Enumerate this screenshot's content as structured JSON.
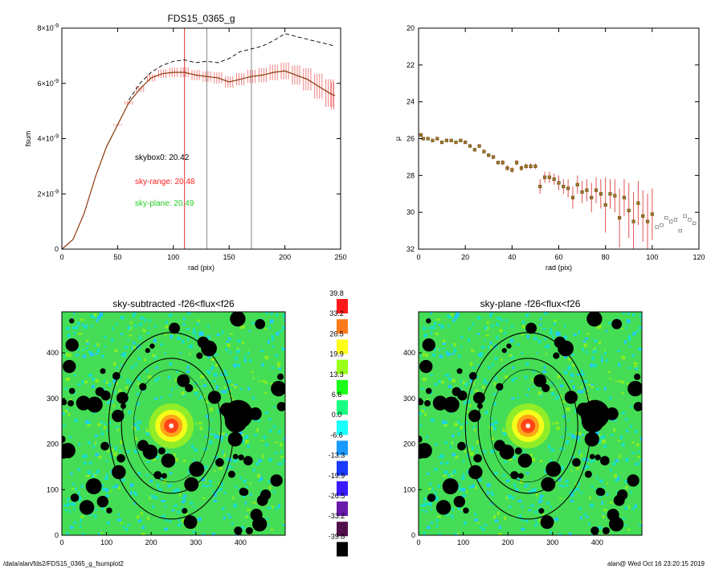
{
  "footer": {
    "left": "/data/alan/fds2/FDS15_0365_g_fsumplot2",
    "right": "alan@  Wed Oct 16 23:20:15 2019"
  },
  "chart_data": [
    {
      "type": "line",
      "title": "FDS15_0365_g",
      "xlabel": "rad (pix)",
      "ylabel": "fsum",
      "xlim": [
        0,
        250
      ],
      "ylim": [
        0,
        8e-09
      ],
      "xticks": [
        "0",
        "50",
        "100",
        "150",
        "200",
        "250"
      ],
      "yticks": [
        "0",
        "2×10⁻⁹",
        "4×10⁻⁹",
        "6×10⁻⁹",
        "8×10⁻⁹"
      ],
      "annotations": [
        {
          "text": "skybox0: 20.42",
          "color": "#000000"
        },
        {
          "text": "sky-range: 20.48",
          "color": "#ff2020"
        },
        {
          "text": "sky-plane: 20.49",
          "color": "#22cc22"
        }
      ],
      "vlines": [
        {
          "x": 110,
          "color": "#e03030"
        },
        {
          "x": 130,
          "color": "#888888"
        },
        {
          "x": 170,
          "color": "#888888"
        }
      ],
      "series": [
        {
          "style": "red-with-errorbars",
          "x": [
            0,
            10,
            20,
            30,
            40,
            50,
            60,
            70,
            80,
            90,
            100,
            110,
            120,
            130,
            140,
            150,
            160,
            170,
            180,
            190,
            200,
            210,
            220,
            230,
            240,
            245
          ],
          "y": [
            0,
            3.5e-10,
            1.3e-09,
            2.6e-09,
            3.7e-09,
            4.5e-09,
            5.3e-09,
            5.8e-09,
            6.2e-09,
            6.35e-09,
            6.4e-09,
            6.4e-09,
            6.3e-09,
            6.25e-09,
            6.2e-09,
            6.05e-09,
            6.15e-09,
            6.25e-09,
            6.3e-09,
            6.4e-09,
            6.45e-09,
            6.3e-09,
            6.15e-09,
            5.9e-09,
            5.65e-09,
            5.55e-09
          ],
          "err": [
            0,
            0,
            0,
            0,
            0,
            3e-11,
            6e-11,
            1e-10,
            1.3e-10,
            1.5e-10,
            1.7e-10,
            1.8e-10,
            1.8e-10,
            1.9e-10,
            2e-10,
            2e-10,
            2.2e-10,
            2.4e-10,
            2.6e-10,
            2.8e-10,
            3e-10,
            3.5e-10,
            4e-10,
            4.5e-10,
            5e-10,
            5e-10
          ]
        },
        {
          "style": "black-dashed",
          "x": [
            60,
            70,
            80,
            90,
            100,
            110,
            120,
            130,
            140,
            150,
            160,
            170,
            180,
            190,
            200,
            210,
            220,
            230,
            240,
            245
          ],
          "y": [
            5.4e-09,
            6e-09,
            6.4e-09,
            6.65e-09,
            6.8e-09,
            6.85e-09,
            6.75e-09,
            6.8e-09,
            6.75e-09,
            6.9e-09,
            7.15e-09,
            7.25e-09,
            7.35e-09,
            7.55e-09,
            7.8e-09,
            7.7e-09,
            7.6e-09,
            7.5e-09,
            7.4e-09,
            7.35e-09
          ]
        }
      ]
    },
    {
      "type": "scatter",
      "title": "",
      "xlabel": "rad (pix)",
      "ylabel": "μ",
      "xlim": [
        0,
        120
      ],
      "ylim": [
        32,
        20
      ],
      "xticks": [
        "0",
        "20",
        "40",
        "60",
        "80",
        "100",
        "120"
      ],
      "yticks": [
        "20",
        "22",
        "24",
        "26",
        "28",
        "30",
        "32"
      ],
      "points": {
        "x": [
          1,
          2,
          4,
          6,
          8,
          10,
          12,
          14,
          16,
          18,
          20,
          22,
          24,
          26,
          28,
          30,
          32,
          34,
          36,
          38,
          40,
          42,
          44,
          46,
          48,
          50,
          52,
          54,
          56,
          58,
          60,
          62,
          64,
          66,
          68,
          70,
          72,
          74,
          76,
          78,
          80,
          82,
          84,
          86,
          88,
          90,
          92,
          94,
          96,
          98,
          100,
          102,
          104,
          106,
          108,
          110,
          112,
          114,
          116,
          118
        ],
        "y": [
          25.8,
          26.0,
          26.0,
          26.1,
          26.0,
          26.2,
          26.1,
          26.1,
          26.2,
          26.1,
          26.2,
          26.4,
          26.6,
          26.4,
          26.7,
          26.9,
          27.0,
          27.3,
          27.3,
          27.6,
          27.7,
          27.3,
          27.6,
          27.5,
          27.5,
          27.5,
          28.6,
          28.1,
          28.1,
          28.2,
          28.4,
          28.6,
          28.7,
          29.2,
          28.5,
          28.9,
          28.8,
          29.2,
          28.8,
          29.0,
          29.6,
          29.0,
          29.1,
          30.3,
          29.2,
          29.9,
          30.5,
          29.5,
          30.2,
          30.5,
          30.1,
          30.8,
          30.7,
          30.3,
          30.5,
          30.4,
          31.0,
          30.2,
          30.4,
          30.6
        ],
        "err": [
          0.1,
          0.05,
          0.05,
          0.05,
          0.05,
          0.05,
          0.05,
          0.05,
          0.05,
          0.05,
          0.05,
          0.05,
          0.1,
          0.1,
          0.1,
          0.1,
          0.1,
          0.1,
          0.15,
          0.15,
          0.15,
          0.15,
          0.15,
          0.15,
          0.15,
          0.15,
          0.4,
          0.3,
          0.3,
          0.3,
          0.4,
          0.4,
          0.5,
          0.6,
          0.5,
          0.6,
          0.6,
          0.8,
          0.7,
          0.8,
          1.5,
          0.8,
          0.9,
          1.6,
          1.0,
          1.5,
          1.6,
          1.2,
          1.4,
          1.5,
          1.4,
          0,
          0,
          0,
          0,
          0,
          0,
          0,
          0,
          0
        ]
      }
    },
    {
      "type": "heatmap",
      "title": "sky-subtracted -f26<flux<f26",
      "xlim": [
        0,
        500
      ],
      "ylim": [
        0,
        490
      ],
      "xticks": [
        "0",
        "100",
        "200",
        "300",
        "400"
      ],
      "yticks": [
        "0",
        "100",
        "200",
        "300",
        "400"
      ],
      "center": [
        245,
        240
      ]
    },
    {
      "type": "heatmap",
      "title": "sky-plane -f26<flux<f26",
      "xlim": [
        0,
        500
      ],
      "ylim": [
        0,
        490
      ],
      "xticks": [
        "0",
        "100",
        "200",
        "300",
        "400"
      ],
      "yticks": [
        "0",
        "100",
        "200",
        "300",
        "400"
      ],
      "center": [
        245,
        240
      ]
    },
    {
      "type": "colorbar",
      "labels": [
        "39.8",
        "33.2",
        "26.5",
        "19.9",
        "13.3",
        "6.6",
        "0.0",
        "-6.6",
        "-13.3",
        "-19.9",
        "-26.5",
        "-33.2",
        "-39.8"
      ],
      "colors": [
        "#ff1a1a",
        "#ff7a1a",
        "#ffff1a",
        "#99ff1a",
        "#1aff1a",
        "#1aff80",
        "#1affff",
        "#1a9aff",
        "#1a3aff",
        "#3a1aff",
        "#6a1aaa",
        "#50104a",
        "#000000"
      ]
    }
  ]
}
